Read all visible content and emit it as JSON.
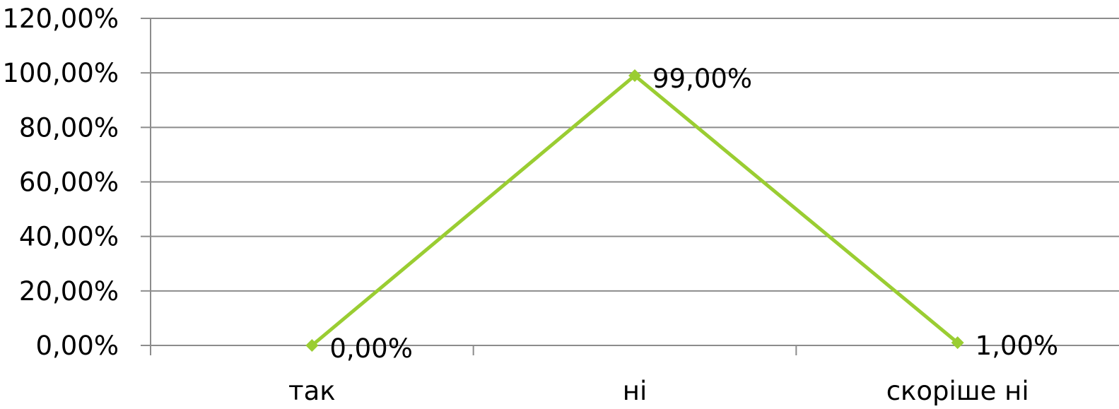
{
  "chart_data": {
    "type": "line",
    "categories": [
      "так",
      "ні",
      "скоріше ні"
    ],
    "series": [
      {
        "values": [
          0,
          99,
          1
        ],
        "data_labels": [
          "0,00%",
          "99,00%",
          "1,00%"
        ],
        "color": "#9acd32",
        "marker": "diamond"
      }
    ],
    "yticks": [
      {
        "value": 0,
        "label": "0,00%"
      },
      {
        "value": 20,
        "label": "20,00%"
      },
      {
        "value": 40,
        "label": "40,00%"
      },
      {
        "value": 60,
        "label": "60,00%"
      },
      {
        "value": 80,
        "label": "80,00%"
      },
      {
        "value": 100,
        "label": "100,00%"
      },
      {
        "value": 120,
        "label": "120,00%"
      }
    ],
    "ylim": [
      0,
      120
    ],
    "grid": true,
    "legend": "none",
    "gridline_color": "#8c8c8c"
  }
}
